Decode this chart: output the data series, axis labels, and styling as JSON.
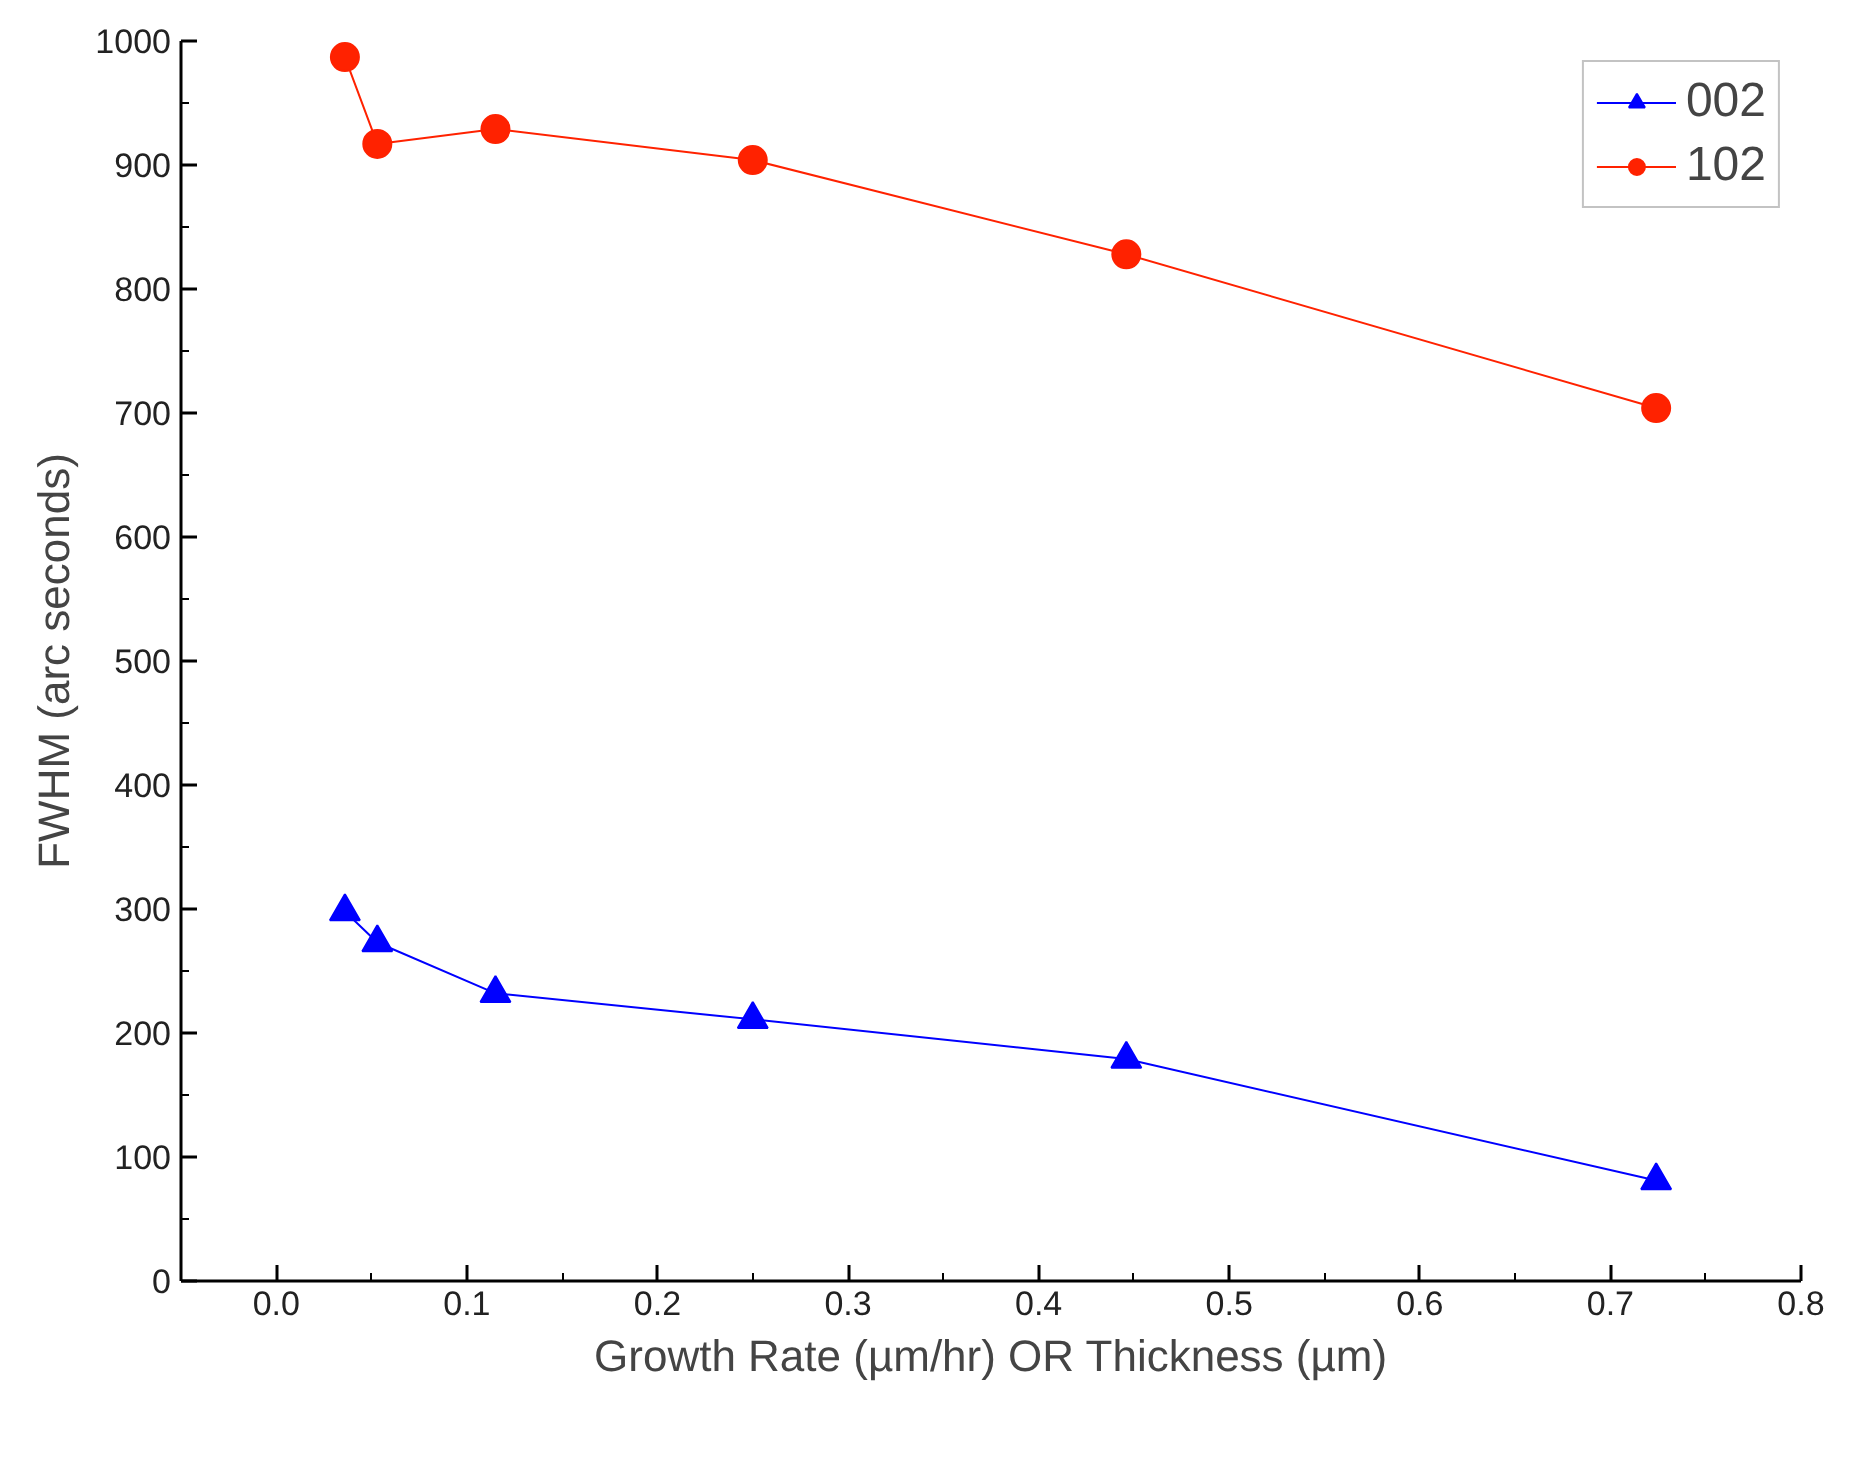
{
  "chart_data": {
    "type": "line",
    "xlabel": "Growth Rate (µm/hr) OR Thickness (µm)",
    "ylabel": "FWHM (arc seconds)",
    "x": [
      0.036,
      0.053,
      0.115,
      0.25,
      0.446,
      0.724
    ],
    "series": [
      {
        "name": "002",
        "color": "#0000ff",
        "marker": "triangle",
        "values": [
          298,
          273,
          232,
          211,
          179,
          81
        ]
      },
      {
        "name": "102",
        "color": "#ff2200",
        "marker": "circle",
        "values": [
          987,
          917,
          929,
          904,
          828,
          704
        ]
      }
    ],
    "xlim": [
      -0.05,
      0.8
    ],
    "ylim": [
      0,
      1000
    ],
    "xticks": [
      {
        "value": 0,
        "label": "0.0"
      },
      0.1,
      0.2,
      0.3,
      0.4,
      0.5,
      0.6,
      0.7,
      0.8
    ],
    "yticks": [
      0,
      100,
      200,
      300,
      400,
      500,
      600,
      700,
      800,
      900,
      1000
    ],
    "grid": false,
    "legend": "top right",
    "line_style": "solid"
  }
}
